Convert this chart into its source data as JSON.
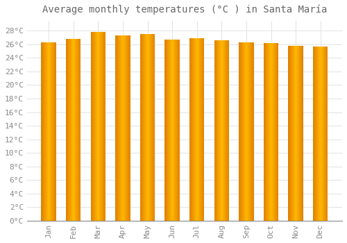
{
  "title": "Average monthly temperatures (°C ) in Santa María",
  "months": [
    "Jan",
    "Feb",
    "Mar",
    "Apr",
    "May",
    "Jun",
    "Jul",
    "Aug",
    "Sep",
    "Oct",
    "Nov",
    "Dec"
  ],
  "temperatures": [
    26.3,
    26.8,
    27.8,
    27.3,
    27.5,
    26.7,
    26.9,
    26.6,
    26.3,
    26.2,
    25.8,
    25.7
  ],
  "bar_color_center": "#FFB700",
  "bar_color_edge": "#E08000",
  "background_color": "#FFFFFF",
  "plot_bg_color": "#FFFFFF",
  "grid_color": "#DDDDDD",
  "ytick_min": 0,
  "ytick_max": 28,
  "ytick_step": 2,
  "title_fontsize": 10,
  "tick_fontsize": 8,
  "bar_width": 0.6
}
